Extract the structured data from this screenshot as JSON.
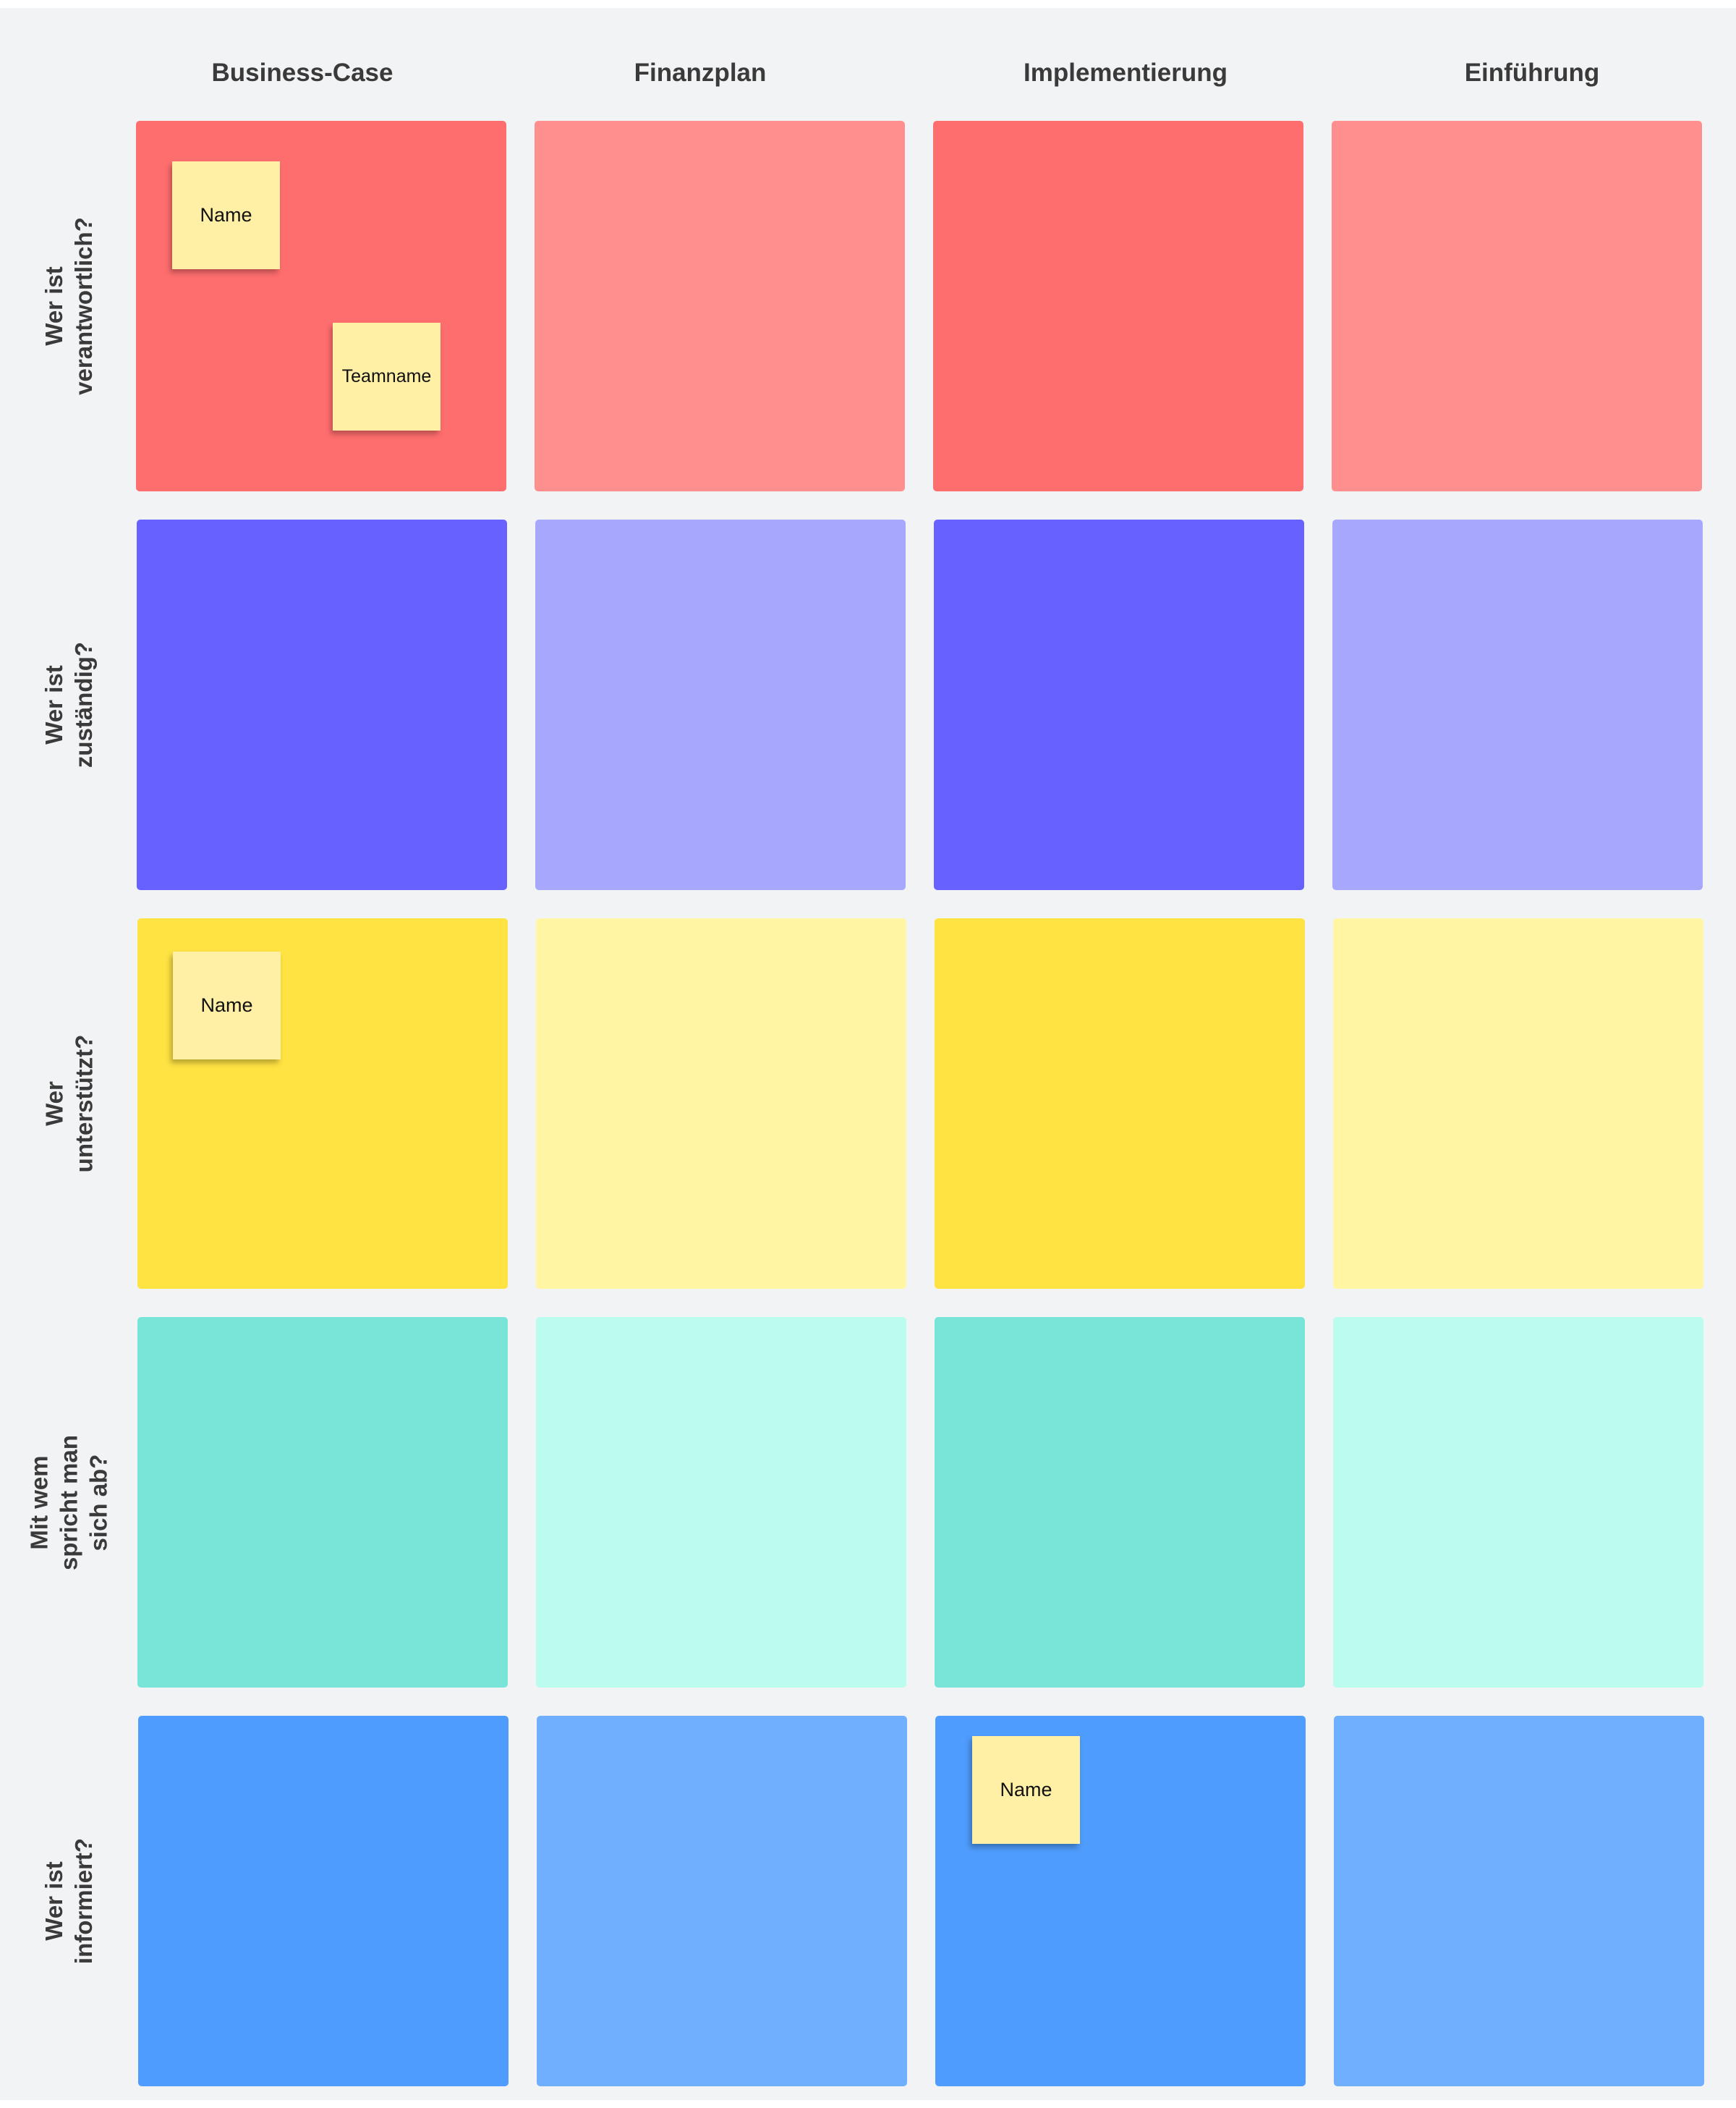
{
  "columns": [
    "Business-Case",
    "Finanzplan",
    "Implementierung",
    "Einführung"
  ],
  "rows": [
    {
      "label": "Wer ist\nverantwortlich?",
      "colors": [
        "#ff6e6e",
        "#ff8f8e",
        "#ff6e6e",
        "#ff8f8e"
      ]
    },
    {
      "label": "Wer ist\nzuständig?",
      "colors": [
        "#6661ff",
        "#a7a7fd",
        "#6661ff",
        "#a7a7fd"
      ]
    },
    {
      "label": "Wer\nunterstützt?",
      "colors": [
        "#ffe343",
        "#fff5a3",
        "#ffe343",
        "#fff5a3"
      ]
    },
    {
      "label": "Mit wem\nspricht man\nsich ab?",
      "colors": [
        "#78e5d8",
        "#bafcee",
        "#78e5d8",
        "#bafcee"
      ]
    },
    {
      "label": "Wer ist\ninformiert?",
      "colors": [
        "#4e9cfd",
        "#70affe",
        "#4e9cfd",
        "#70affe"
      ]
    }
  ],
  "notes": [
    {
      "text": "Name",
      "row": 0,
      "col": 0
    },
    {
      "text": "Teamname",
      "row": 0,
      "col": 0
    },
    {
      "text": "Name",
      "row": 2,
      "col": 0
    },
    {
      "text": "Name",
      "row": 4,
      "col": 2
    }
  ],
  "note_color": "#fff0a6"
}
